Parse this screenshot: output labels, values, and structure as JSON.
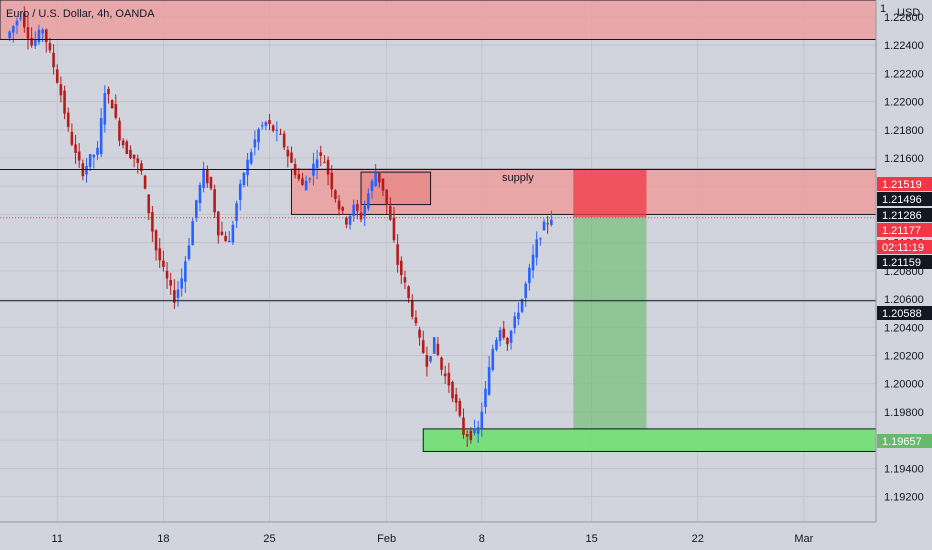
{
  "header": {
    "title": "Euro / U.S. Dollar, 4h, OANDA",
    "currency": "USD"
  },
  "colors": {
    "background": "#d1d4dc",
    "bull": "#2962ff",
    "bear": "#b71c1c",
    "supply_zone": "#ef9a9a",
    "target_zone": "#66bb6a",
    "stop_zone": "#f23645",
    "price_tag": "#f23645",
    "level_tag": "#131722"
  },
  "chart_data": {
    "type": "candlestick",
    "title": "Euro / U.S. Dollar, 4h, OANDA",
    "ylim": [
      1.1902,
      1.2272
    ],
    "y_ticks": [
      "1.22600",
      "1.22400",
      "1.22200",
      "1.22000",
      "1.21800",
      "1.21600",
      "1.21400",
      "1.21200",
      "1.21000",
      "1.20800",
      "1.20600",
      "1.20400",
      "1.20200",
      "1.20000",
      "1.19800",
      "1.19600",
      "1.19400",
      "1.19200"
    ],
    "x_ticks": [
      "11",
      "18",
      "25",
      "Feb",
      "8",
      "15",
      "22",
      "Mar"
    ],
    "annotations": {
      "supply_label": "supply",
      "price_tags": [
        {
          "label": "1.21519",
          "kind": "stop"
        },
        {
          "label": "1.21496",
          "kind": "level"
        },
        {
          "label": "1.21286",
          "kind": "level"
        },
        {
          "label": "1.21177",
          "kind": "current"
        },
        {
          "label": "02:11:19",
          "kind": "countdown"
        },
        {
          "label": "1.21159",
          "kind": "level"
        },
        {
          "label": "1.20588",
          "kind": "level"
        },
        {
          "label": "1.19657",
          "kind": "target"
        }
      ]
    },
    "anchors": [
      [
        0,
        1.2245
      ],
      [
        4,
        1.2262
      ],
      [
        7,
        1.224
      ],
      [
        10,
        1.2252
      ],
      [
        13,
        1.2225
      ],
      [
        15,
        1.2205
      ],
      [
        17,
        1.218
      ],
      [
        19,
        1.2162
      ],
      [
        21,
        1.215
      ],
      [
        23,
        1.216
      ],
      [
        25,
        1.2165
      ],
      [
        27,
        1.2208
      ],
      [
        29,
        1.2198
      ],
      [
        31,
        1.2175
      ],
      [
        33,
        1.2165
      ],
      [
        35,
        1.216
      ],
      [
        37,
        1.215
      ],
      [
        39,
        1.2122
      ],
      [
        41,
        1.2095
      ],
      [
        43,
        1.208
      ],
      [
        46,
        1.206
      ],
      [
        48,
        1.2075
      ],
      [
        50,
        1.21
      ],
      [
        52,
        1.213
      ],
      [
        54,
        1.215
      ],
      [
        56,
        1.2138
      ],
      [
        58,
        1.2108
      ],
      [
        61,
        1.21
      ],
      [
        63,
        1.2128
      ],
      [
        65,
        1.215
      ],
      [
        67,
        1.2165
      ],
      [
        69,
        1.218
      ],
      [
        71,
        1.2185
      ],
      [
        73,
        1.218
      ],
      [
        75,
        1.2175
      ],
      [
        77,
        1.2162
      ],
      [
        79,
        1.215
      ],
      [
        81,
        1.214
      ],
      [
        83,
        1.2148
      ],
      [
        85,
        1.2162
      ],
      [
        87,
        1.2158
      ],
      [
        89,
        1.214
      ],
      [
        91,
        1.2125
      ],
      [
        93,
        1.2115
      ],
      [
        95,
        1.2125
      ],
      [
        97,
        1.2118
      ],
      [
        99,
        1.2135
      ],
      [
        101,
        1.215
      ],
      [
        103,
        1.2138
      ],
      [
        105,
        1.2115
      ],
      [
        107,
        1.2085
      ],
      [
        109,
        1.207
      ],
      [
        111,
        1.205
      ],
      [
        113,
        1.203
      ],
      [
        115,
        1.2015
      ],
      [
        117,
        1.203
      ],
      [
        119,
        1.201
      ],
      [
        121,
        1.2
      ],
      [
        123,
        1.1985
      ],
      [
        125,
        1.1965
      ],
      [
        127,
        1.1963
      ],
      [
        129,
        1.1968
      ],
      [
        131,
        1.1995
      ],
      [
        133,
        1.2025
      ],
      [
        135,
        1.204
      ],
      [
        137,
        1.203
      ],
      [
        139,
        1.2045
      ],
      [
        141,
        1.206
      ],
      [
        143,
        1.208
      ],
      [
        145,
        1.21
      ],
      [
        147,
        1.2112
      ],
      [
        149,
        1.2118
      ]
    ],
    "x_ticks_index": [
      14,
      43,
      72,
      104,
      130,
      160,
      189,
      218
    ]
  },
  "zones": {
    "top_red": {
      "price_from": 1.2272,
      "price_to": 1.2244
    },
    "supply": {
      "price_from": 1.2152,
      "price_to": 1.212
    },
    "inner_box": {
      "price_from": 1.215,
      "price_to": 1.2127
    },
    "stop": {
      "price_from": 1.2152,
      "price_to": 1.2118
    },
    "target": {
      "price_from": 1.2118,
      "price_to": 1.1967
    },
    "demand": {
      "price_from": 1.1968,
      "price_to": 1.1952
    },
    "lines": [
      1.21519,
      1.20588,
      1.2244
    ],
    "current_price": 1.21177
  }
}
